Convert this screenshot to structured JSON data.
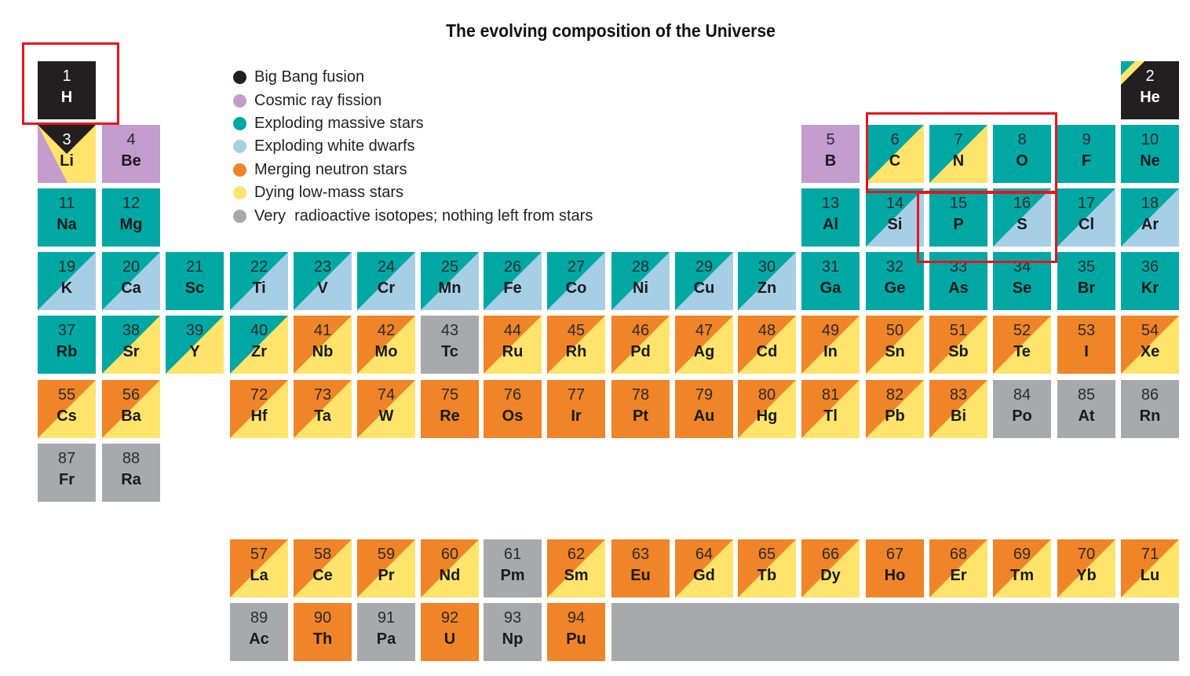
{
  "title": "The evolving composition of the Universe",
  "colors": {
    "bigbang": "#231f20",
    "cosmic": "#c39bcd",
    "massive": "#00a8a4",
    "whitedwarf": "#a6cfe6",
    "neutron": "#f08428",
    "lowmass": "#ffe36b",
    "radioactive": "#a7a9ac",
    "highlight": "#e8141c"
  },
  "legend": [
    {
      "key": "bigbang",
      "label": "Big Bang fusion"
    },
    {
      "key": "cosmic",
      "label": "Cosmic ray fission"
    },
    {
      "key": "massive",
      "label": "Exploding massive stars"
    },
    {
      "key": "whitedwarf",
      "label": "Exploding white dwarfs"
    },
    {
      "key": "neutron",
      "label": "Merging neutron stars"
    },
    {
      "key": "lowmass",
      "label": "Dying low-mass stars"
    },
    {
      "key": "radioactive",
      "label": "Very  radioactive isotopes; nothing left from stars"
    }
  ],
  "elements": [
    {
      "n": "1",
      "s": "H",
      "main": "bigbang"
    },
    {
      "n": "2",
      "s": "He",
      "main": "bigbang",
      "corner": "massive",
      "corner2": "lowmass"
    },
    {
      "n": "3",
      "s": "Li",
      "main": "lowmass",
      "left": "cosmic",
      "top": "bigbang"
    },
    {
      "n": "4",
      "s": "Be",
      "main": "cosmic"
    },
    {
      "n": "5",
      "s": "B",
      "main": "cosmic"
    },
    {
      "n": "6",
      "s": "C",
      "main": "lowmass",
      "tl": "massive"
    },
    {
      "n": "7",
      "s": "N",
      "main": "lowmass",
      "tl": "massive"
    },
    {
      "n": "8",
      "s": "O",
      "main": "massive"
    },
    {
      "n": "9",
      "s": "F",
      "main": "massive"
    },
    {
      "n": "10",
      "s": "Ne",
      "main": "massive"
    },
    {
      "n": "11",
      "s": "Na",
      "main": "massive"
    },
    {
      "n": "12",
      "s": "Mg",
      "main": "massive"
    },
    {
      "n": "13",
      "s": "Al",
      "main": "massive"
    },
    {
      "n": "14",
      "s": "Si",
      "main": "massive",
      "br": "whitedwarf"
    },
    {
      "n": "15",
      "s": "P",
      "main": "massive"
    },
    {
      "n": "16",
      "s": "S",
      "main": "massive",
      "br": "whitedwarf"
    },
    {
      "n": "17",
      "s": "Cl",
      "main": "massive",
      "br": "whitedwarf"
    },
    {
      "n": "18",
      "s": "Ar",
      "main": "massive",
      "br": "whitedwarf"
    },
    {
      "n": "19",
      "s": "K",
      "main": "massive",
      "br": "whitedwarf"
    },
    {
      "n": "20",
      "s": "Ca",
      "main": "massive",
      "br": "whitedwarf"
    },
    {
      "n": "21",
      "s": "Sc",
      "main": "massive"
    },
    {
      "n": "22",
      "s": "Ti",
      "main": "whitedwarf",
      "tl": "massive"
    },
    {
      "n": "23",
      "s": "V",
      "main": "whitedwarf",
      "tl": "massive"
    },
    {
      "n": "24",
      "s": "Cr",
      "main": "whitedwarf",
      "tl": "massive"
    },
    {
      "n": "25",
      "s": "Mn",
      "main": "whitedwarf",
      "tl": "massive"
    },
    {
      "n": "26",
      "s": "Fe",
      "main": "whitedwarf",
      "tl": "massive"
    },
    {
      "n": "27",
      "s": "Co",
      "main": "whitedwarf",
      "tl": "massive"
    },
    {
      "n": "28",
      "s": "Ni",
      "main": "whitedwarf",
      "tl": "massive"
    },
    {
      "n": "29",
      "s": "Cu",
      "main": "massive",
      "br": "whitedwarf"
    },
    {
      "n": "30",
      "s": "Zn",
      "main": "massive",
      "br": "whitedwarf"
    },
    {
      "n": "31",
      "s": "Ga",
      "main": "massive"
    },
    {
      "n": "32",
      "s": "Ge",
      "main": "massive"
    },
    {
      "n": "33",
      "s": "As",
      "main": "massive"
    },
    {
      "n": "34",
      "s": "Se",
      "main": "massive"
    },
    {
      "n": "35",
      "s": "Br",
      "main": "massive"
    },
    {
      "n": "36",
      "s": "Kr",
      "main": "massive"
    },
    {
      "n": "37",
      "s": "Rb",
      "main": "massive"
    },
    {
      "n": "38",
      "s": "Sr",
      "main": "lowmass",
      "tl": "massive"
    },
    {
      "n": "39",
      "s": "Y",
      "main": "lowmass",
      "tl": "massive"
    },
    {
      "n": "40",
      "s": "Zr",
      "main": "lowmass",
      "tl": "massive"
    },
    {
      "n": "41",
      "s": "Nb",
      "main": "lowmass",
      "tl": "neutron"
    },
    {
      "n": "42",
      "s": "Mo",
      "main": "lowmass",
      "tl": "neutron"
    },
    {
      "n": "43",
      "s": "Tc",
      "main": "radioactive"
    },
    {
      "n": "44",
      "s": "Ru",
      "main": "neutron",
      "br": "lowmass"
    },
    {
      "n": "45",
      "s": "Rh",
      "main": "neutron",
      "br": "lowmass"
    },
    {
      "n": "46",
      "s": "Pd",
      "main": "neutron",
      "br": "lowmass"
    },
    {
      "n": "47",
      "s": "Ag",
      "main": "neutron",
      "br": "lowmass"
    },
    {
      "n": "48",
      "s": "Cd",
      "main": "lowmass",
      "tl": "neutron"
    },
    {
      "n": "49",
      "s": "In",
      "main": "neutron",
      "br": "lowmass"
    },
    {
      "n": "50",
      "s": "Sn",
      "main": "lowmass",
      "tl": "neutron"
    },
    {
      "n": "51",
      "s": "Sb",
      "main": "neutron",
      "br": "lowmass"
    },
    {
      "n": "52",
      "s": "Te",
      "main": "neutron",
      "br": "lowmass"
    },
    {
      "n": "53",
      "s": "I",
      "main": "neutron"
    },
    {
      "n": "54",
      "s": "Xe",
      "main": "neutron",
      "br": "lowmass"
    },
    {
      "n": "55",
      "s": "Cs",
      "main": "neutron",
      "br": "lowmass"
    },
    {
      "n": "56",
      "s": "Ba",
      "main": "lowmass",
      "tl": "neutron"
    },
    {
      "n": "72",
      "s": "Hf",
      "main": "neutron",
      "br": "lowmass"
    },
    {
      "n": "73",
      "s": "Ta",
      "main": "neutron",
      "br": "lowmass"
    },
    {
      "n": "74",
      "s": "W",
      "main": "lowmass",
      "tl": "neutron"
    },
    {
      "n": "75",
      "s": "Re",
      "main": "neutron"
    },
    {
      "n": "76",
      "s": "Os",
      "main": "neutron"
    },
    {
      "n": "77",
      "s": "Ir",
      "main": "neutron"
    },
    {
      "n": "78",
      "s": "Pt",
      "main": "neutron"
    },
    {
      "n": "79",
      "s": "Au",
      "main": "neutron"
    },
    {
      "n": "80",
      "s": "Hg",
      "main": "lowmass",
      "tl": "neutron"
    },
    {
      "n": "81",
      "s": "Tl",
      "main": "lowmass",
      "tl": "neutron"
    },
    {
      "n": "82",
      "s": "Pb",
      "main": "lowmass",
      "tl": "neutron"
    },
    {
      "n": "83",
      "s": "Bi",
      "main": "neutron",
      "br": "lowmass"
    },
    {
      "n": "84",
      "s": "Po",
      "main": "radioactive"
    },
    {
      "n": "85",
      "s": "At",
      "main": "radioactive"
    },
    {
      "n": "86",
      "s": "Rn",
      "main": "radioactive"
    },
    {
      "n": "87",
      "s": "Fr",
      "main": "radioactive"
    },
    {
      "n": "88",
      "s": "Ra",
      "main": "radioactive"
    },
    {
      "n": "57",
      "s": "La",
      "main": "lowmass",
      "tl": "neutron"
    },
    {
      "n": "58",
      "s": "Ce",
      "main": "lowmass",
      "tl": "neutron"
    },
    {
      "n": "59",
      "s": "Pr",
      "main": "lowmass",
      "tl": "neutron"
    },
    {
      "n": "60",
      "s": "Nd",
      "main": "lowmass",
      "tl": "neutron"
    },
    {
      "n": "61",
      "s": "Pm",
      "main": "radioactive"
    },
    {
      "n": "62",
      "s": "Sm",
      "main": "neutron",
      "br": "lowmass"
    },
    {
      "n": "63",
      "s": "Eu",
      "main": "neutron"
    },
    {
      "n": "64",
      "s": "Gd",
      "main": "neutron",
      "br": "lowmass"
    },
    {
      "n": "65",
      "s": "Tb",
      "main": "neutron",
      "br": "lowmass"
    },
    {
      "n": "66",
      "s": "Dy",
      "main": "neutron",
      "br": "lowmass"
    },
    {
      "n": "67",
      "s": "Ho",
      "main": "neutron"
    },
    {
      "n": "68",
      "s": "Er",
      "main": "neutron",
      "br": "lowmass"
    },
    {
      "n": "69",
      "s": "Tm",
      "main": "neutron",
      "br": "lowmass"
    },
    {
      "n": "70",
      "s": "Yb",
      "main": "lowmass",
      "tl": "neutron"
    },
    {
      "n": "71",
      "s": "Lu",
      "main": "neutron",
      "br": "lowmass"
    },
    {
      "n": "89",
      "s": "Ac",
      "main": "radioactive"
    },
    {
      "n": "90",
      "s": "Th",
      "main": "neutron"
    },
    {
      "n": "91",
      "s": "Pa",
      "main": "radioactive"
    },
    {
      "n": "92",
      "s": "U",
      "main": "neutron"
    },
    {
      "n": "93",
      "s": "Np",
      "main": "radioactive"
    },
    {
      "n": "94",
      "s": "Pu",
      "main": "neutron"
    }
  ],
  "highlighted_elements": [
    "H",
    "C",
    "N",
    "O",
    "P",
    "S"
  ]
}
